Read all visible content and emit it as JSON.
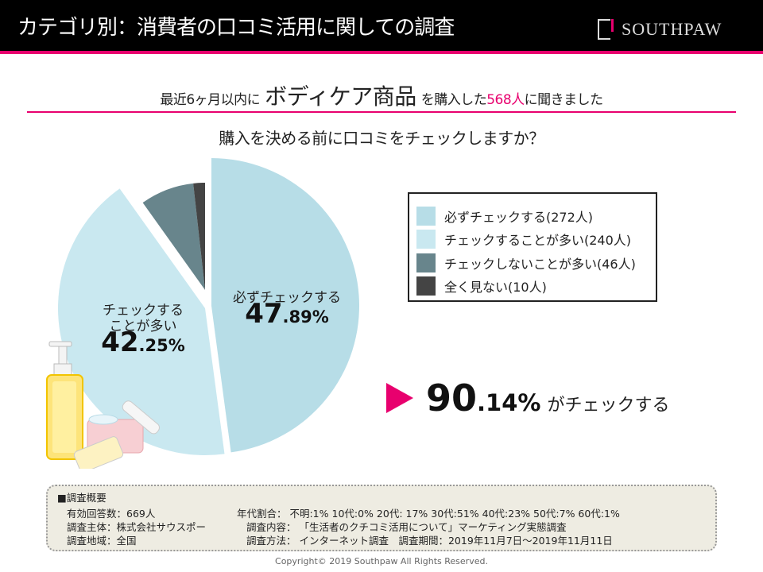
{
  "header": {
    "title": "カテゴリ別：消費者の口コミ活用に関しての調査",
    "logo": "SOUTHPAW"
  },
  "lead": {
    "prefix": "最近6ヶ月以内に",
    "category": "ボディケア商品",
    "middle": "を購入した",
    "count": "568人",
    "suffix": "に聞きました"
  },
  "question": "購入を決める前に口コミをチェックしますか？",
  "chart_data": {
    "type": "pie",
    "title": "購入を決める前に口コミをチェックしますか？",
    "total": 568,
    "slices": [
      {
        "name": "必ずチェックする",
        "legend": "必ずチェックする(272人)",
        "value": 272,
        "percent_int": "47",
        "percent_dec": ".89%",
        "color": "#b7dde7"
      },
      {
        "name": "チェックすることが多い",
        "legend": "チェックすることが多い(240人)",
        "value": 240,
        "percent_int": "42",
        "percent_dec": ".25%",
        "color": "#c9e8f0",
        "label_line1": "チェックする",
        "label_line2": "ことが多い"
      },
      {
        "name": "チェックしないことが多い",
        "legend": "チェックしないことが多い(46人)",
        "value": 46,
        "color": "#68858c"
      },
      {
        "name": "全く見ない",
        "legend": "全く見ない(10人)",
        "value": 10,
        "color": "#444444"
      }
    ],
    "legend_position": "right"
  },
  "callout": {
    "int": "90",
    "dec": ".14%",
    "text": "がチェックする",
    "accent": "#e8006e"
  },
  "survey": {
    "heading": "■調査概要",
    "respondents": "有効回答数：669人",
    "organizer": "調査主体：株式会社サウスポー",
    "region": "調査地域：全国",
    "age": "年代割合： 不明:1% 10代:0% 20代: 17% 30代:51% 40代:23% 50代:7% 60代:1%",
    "content": "調査内容： 「生活者のクチコミ活用について」マーケティング実態調査",
    "method": "調査方法： インターネット調査　調査期間：2019年11月7日～2019年11月11日"
  },
  "copyright": "Copyright© 2019 Southpaw All Rights Reserved."
}
